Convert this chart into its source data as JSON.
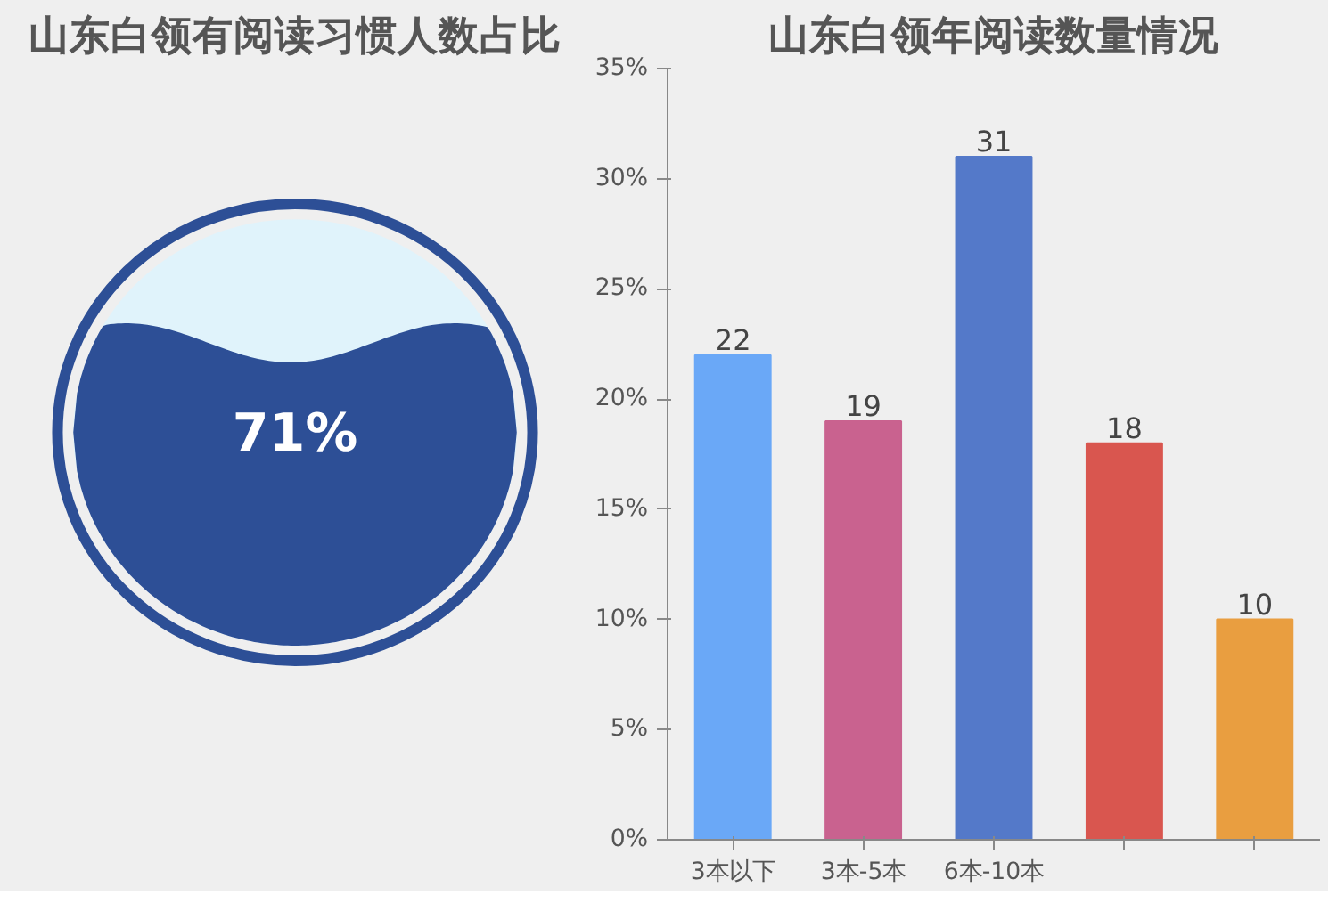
{
  "chart_data": [
    {
      "type": "other",
      "title": "山东白领有阅读习惯人数占比",
      "values": [
        71
      ],
      "value_labels": [
        "71%"
      ],
      "colors": [
        "#2d4f96"
      ]
    },
    {
      "type": "bar",
      "title": "山东白领年阅读数量情况",
      "categories": [
        "3本以下",
        "3本-5本",
        "6本-10本",
        null,
        null
      ],
      "values": [
        22,
        19,
        31,
        18,
        10
      ],
      "colors": [
        "#6aa8f7",
        "#c9628f",
        "#5479c9",
        "#d9564f",
        "#e99e40"
      ],
      "ylim": [
        0,
        35
      ],
      "yticks": [
        {
          "value": 0,
          "label": "0%"
        },
        {
          "value": 5,
          "label": "5%"
        },
        {
          "value": 10,
          "label": "10%"
        },
        {
          "value": 15,
          "label": "15%"
        },
        {
          "value": 20,
          "label": "20%"
        },
        {
          "value": 25,
          "label": "25%"
        },
        {
          "value": 30,
          "label": "30%"
        },
        {
          "value": 35,
          "label": "35%"
        }
      ],
      "data_labels": true,
      "grid": false
    }
  ]
}
